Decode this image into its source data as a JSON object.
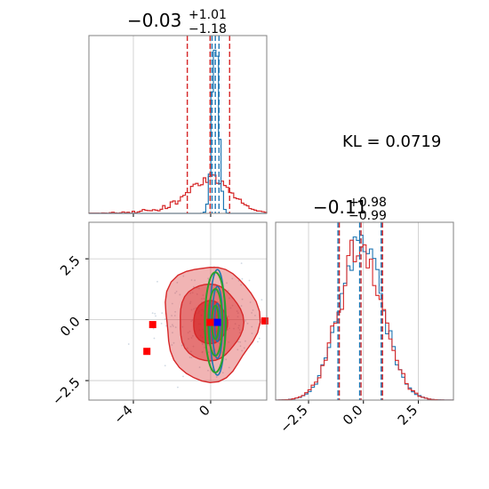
{
  "chart_data": {
    "type": "corner",
    "annotation": "KL = 0.0719",
    "params": [
      {
        "title": {
          "median": "−0.03",
          "upper": "+1.01",
          "lower": "−1.18"
        },
        "xlim": [
          -6.3,
          2.9
        ],
        "xticks": [
          -4,
          0
        ],
        "xtick_labels": [
          "−4",
          "0"
        ],
        "red_quantiles": [
          -1.21,
          -0.03,
          0.98
        ],
        "blue_quantiles": [
          0.07,
          0.24,
          0.43
        ]
      },
      {
        "title": {
          "median": "−0.11",
          "upper": "+0.98",
          "lower": "−0.99"
        },
        "xlim": [
          -4.0,
          4.1
        ],
        "xticks": [
          -2.5,
          0.0,
          2.5
        ],
        "xtick_labels": [
          "−2.5",
          "0.0",
          "2.5"
        ],
        "red_quantiles": [
          -1.1,
          -0.11,
          0.87
        ],
        "blue_quantiles": [
          -1.1,
          -0.11,
          0.87
        ]
      }
    ],
    "joint": {
      "ylim": [
        -3.3,
        4.0
      ],
      "yticks": [
        -2.5,
        0.0,
        2.5
      ],
      "ytick_labels": [
        "−2.5",
        "0.0",
        "2.5"
      ],
      "red_center": [
        -0.03,
        -0.11
      ],
      "blue_center": [
        0.35,
        -0.11
      ],
      "red_outliers": [
        [
          -3.0,
          -0.2
        ],
        [
          -3.3,
          -1.3
        ],
        [
          2.8,
          -0.05
        ]
      ],
      "green_ellipses": [
        {
          "center": [
            0.24,
            -0.11
          ],
          "sd": [
            0.2,
            0.98
          ]
        }
      ]
    },
    "colors": {
      "red": "#d62728",
      "blue": "#1f77b4",
      "green": "#2ca02c",
      "marker_red": "#ff0000",
      "marker_blue": "#0000ff",
      "grid": "#c8c8c8",
      "frame": "#808080"
    }
  }
}
